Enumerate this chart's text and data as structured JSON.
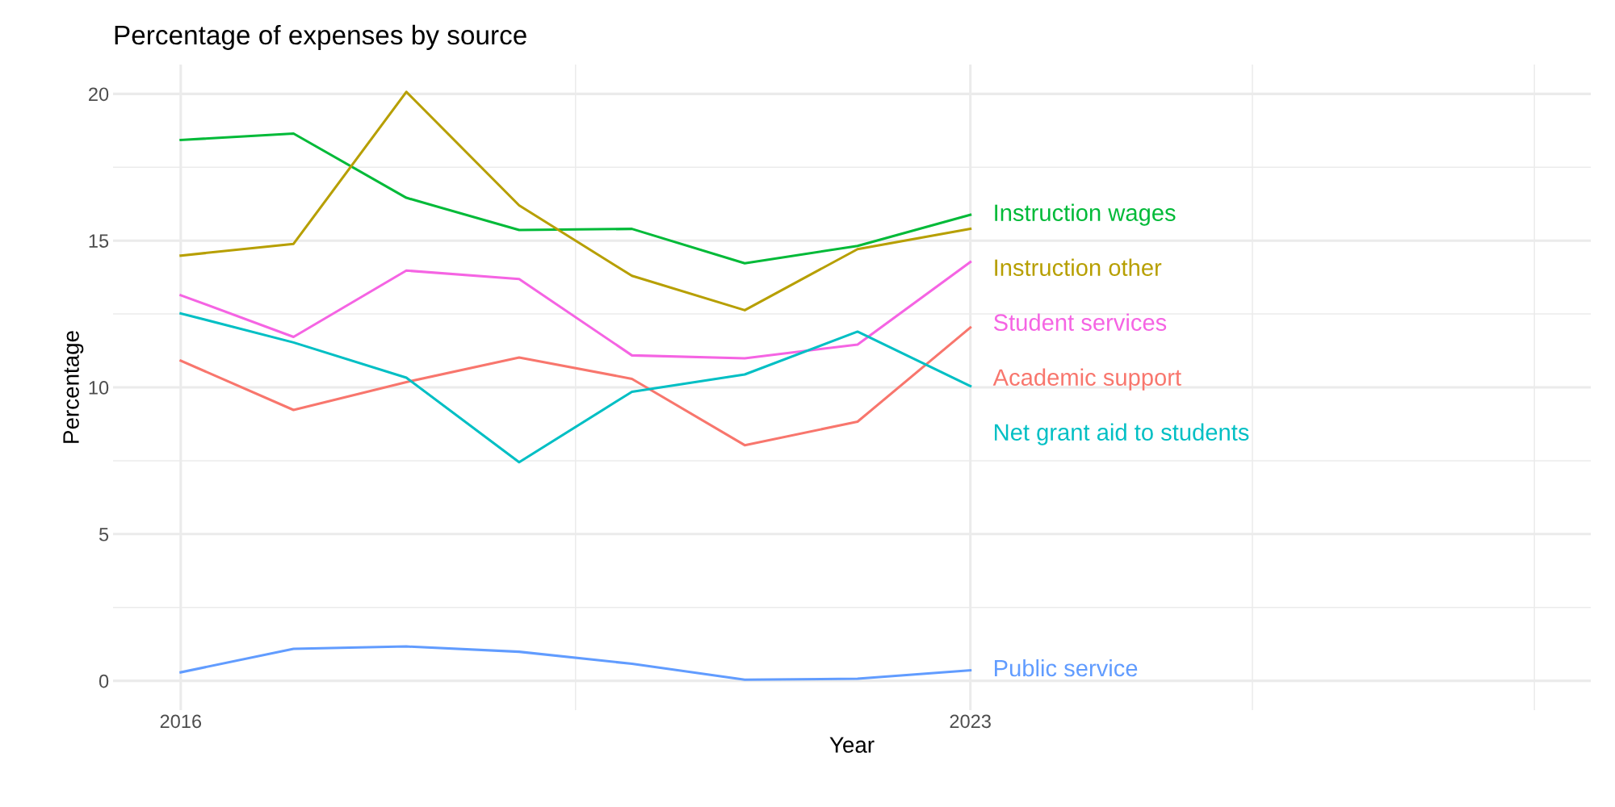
{
  "chart_data": {
    "type": "line",
    "title": "Percentage of expenses by source",
    "xlabel": "Year",
    "ylabel": "Percentage",
    "x": [
      2016,
      2017,
      2018,
      2019,
      2020,
      2021,
      2022,
      2023
    ],
    "series": [
      {
        "name": "Instruction wages",
        "color": "#00ba38",
        "values": [
          18.43,
          18.65,
          16.46,
          15.36,
          15.4,
          14.23,
          14.82,
          15.88
        ]
      },
      {
        "name": "Instruction other",
        "color": "#b79f00",
        "values": [
          14.49,
          14.89,
          20.07,
          16.2,
          13.8,
          12.63,
          14.71,
          15.4
        ]
      },
      {
        "name": "Student services",
        "color": "#f564e3",
        "values": [
          13.14,
          11.72,
          13.98,
          13.69,
          11.09,
          10.99,
          11.46,
          14.27
        ]
      },
      {
        "name": "Academic support",
        "color": "#f8766d",
        "values": [
          10.91,
          9.23,
          10.18,
          11.02,
          10.29,
          8.03,
          8.83,
          12.04
        ]
      },
      {
        "name": "Net grant aid to students",
        "color": "#00bfc4",
        "values": [
          12.52,
          11.53,
          10.33,
          7.45,
          9.85,
          10.44,
          11.9,
          10.04
        ]
      },
      {
        "name": "Public service",
        "color": "#619cff",
        "values": [
          0.29,
          1.09,
          1.17,
          0.99,
          0.58,
          0.04,
          0.07,
          0.36
        ]
      }
    ],
    "xlim": [
      2015.4,
      2028.5
    ],
    "xticks": [
      2016,
      {
        "value": 2019.5,
        "label": null
      },
      2023,
      {
        "value": 2025.5,
        "label": null
      },
      {
        "value": 2028,
        "label": null
      }
    ],
    "ylim": [
      -1,
      21
    ],
    "yticks": [
      0,
      {
        "value": 2.5,
        "label": null
      },
      5,
      {
        "value": 7.5,
        "label": null
      },
      10,
      {
        "value": 12.5,
        "label": null
      },
      15,
      {
        "value": 17.5,
        "label": null
      },
      20
    ],
    "grid": true,
    "legend": false,
    "line_style": "solid",
    "marker": "none"
  }
}
